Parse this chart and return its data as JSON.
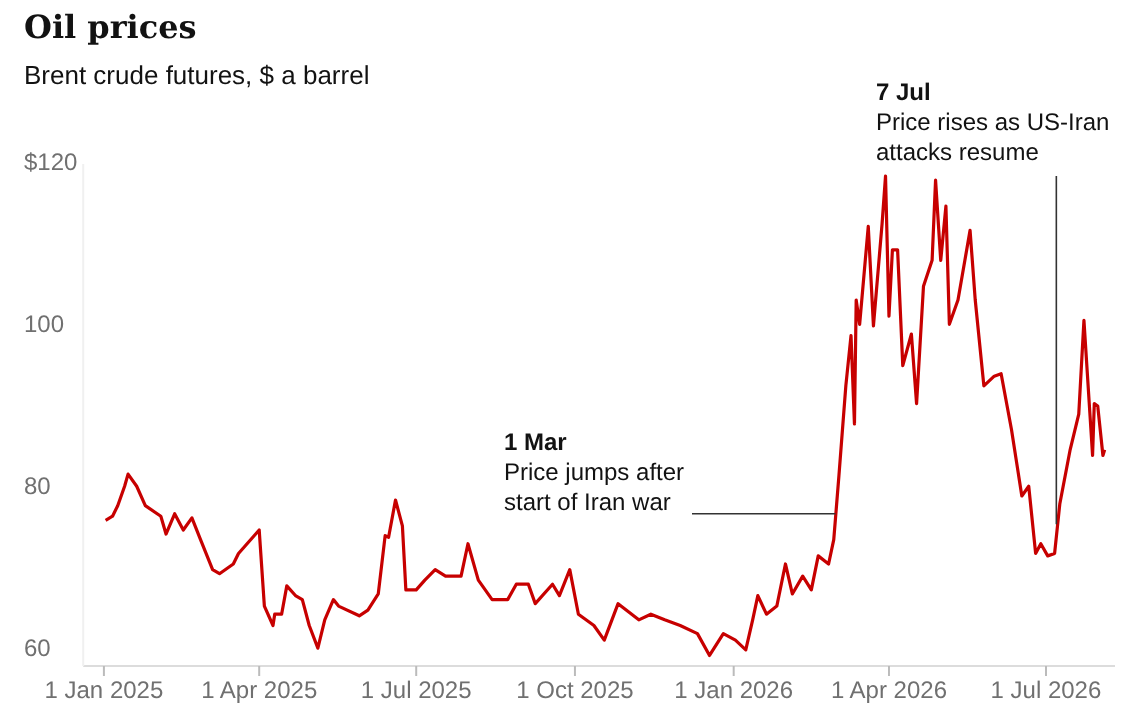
{
  "chart_data": {
    "type": "line",
    "title": "Oil prices",
    "subtitle": "Brent crude futures, $ a barrel",
    "xlim": [
      "2024-12-20",
      "2026-08-10"
    ],
    "ylim": [
      58,
      120
    ],
    "xticks": [
      {
        "value": "2025-01-01",
        "label": "1 Jan 2025"
      },
      {
        "value": "2025-04-01",
        "label": "1 Apr 2025"
      },
      {
        "value": "2025-07-01",
        "label": "1 Jul 2025"
      },
      {
        "value": "2025-10-01",
        "label": "1 Oct 2025"
      },
      {
        "value": "2026-01-01",
        "label": "1 Jan 2026"
      },
      {
        "value": "2026-04-01",
        "label": "1 Apr 2026"
      },
      {
        "value": "2026-07-01",
        "label": "1 Jul 2026"
      }
    ],
    "yticks": [
      60,
      80,
      100,
      {
        "value": 120,
        "label": "$120"
      }
    ],
    "grid": false,
    "annotations": [
      {
        "text": "1 Mar\nPrice jumps after\nstart of Iran war",
        "x": "2026-03-01",
        "y": 76.8
      },
      {
        "text": "7 Jul\nPrice rises as US-Iran\nattacks resume",
        "x": "2026-07-07",
        "y": 75.5
      }
    ],
    "series": [
      {
        "color": "#c70000",
        "x": [
          "2025-01-02",
          "2025-01-06",
          "2025-01-09",
          "2025-01-13",
          "2025-01-15",
          "2025-01-20",
          "2025-01-25",
          "2025-02-03",
          "2025-02-06",
          "2025-02-11",
          "2025-02-16",
          "2025-02-21",
          "2025-02-26",
          "2025-03-05",
          "2025-03-09",
          "2025-03-17",
          "2025-03-20",
          "2025-04-01",
          "2025-04-04",
          "2025-04-09",
          "2025-04-10",
          "2025-04-14",
          "2025-04-17",
          "2025-04-22",
          "2025-04-26",
          "2025-04-30",
          "2025-05-05",
          "2025-05-09",
          "2025-05-14",
          "2025-05-17",
          "2025-05-29",
          "2025-06-03",
          "2025-06-09",
          "2025-06-13",
          "2025-06-15",
          "2025-06-19",
          "2025-06-23",
          "2025-06-25",
          "2025-07-01",
          "2025-07-06",
          "2025-07-12",
          "2025-07-18",
          "2025-07-27",
          "2025-07-31",
          "2025-08-06",
          "2025-08-14",
          "2025-08-23",
          "2025-08-28",
          "2025-09-04",
          "2025-09-08",
          "2025-09-18",
          "2025-09-22",
          "2025-09-28",
          "2025-10-03",
          "2025-10-12",
          "2025-10-18",
          "2025-10-26",
          "2025-11-07",
          "2025-11-14",
          "2025-11-22",
          "2025-12-01",
          "2025-12-11",
          "2025-12-18",
          "2025-12-26",
          "2026-01-02",
          "2026-01-08",
          "2026-01-12",
          "2026-01-15",
          "2026-01-20",
          "2026-01-26",
          "2026-01-31",
          "2026-02-04",
          "2026-02-10",
          "2026-02-15",
          "2026-02-19",
          "2026-02-25",
          "2026-02-28",
          "2026-03-03",
          "2026-03-07",
          "2026-03-10",
          "2026-03-12",
          "2026-03-13",
          "2026-03-15",
          "2026-03-20",
          "2026-03-23",
          "2026-03-28",
          "2026-03-30",
          "2026-04-01",
          "2026-04-03",
          "2026-04-06",
          "2026-04-09",
          "2026-04-14",
          "2026-04-17",
          "2026-04-21",
          "2026-04-26",
          "2026-04-28",
          "2026-05-01",
          "2026-05-04",
          "2026-05-06",
          "2026-05-11",
          "2026-05-18",
          "2026-05-21",
          "2026-05-26",
          "2026-06-01",
          "2026-06-05",
          "2026-06-11",
          "2026-06-17",
          "2026-06-21",
          "2026-06-25",
          "2026-06-28",
          "2026-07-02",
          "2026-07-06",
          "2026-07-09",
          "2026-07-15",
          "2026-07-20",
          "2026-07-23",
          "2026-07-28",
          "2026-07-29",
          "2026-07-31",
          "2026-08-03",
          "2026-08-04"
        ],
        "values": [
          76.0,
          76.5,
          77.8,
          80.2,
          81.7,
          80.2,
          77.8,
          76.5,
          74.3,
          76.8,
          74.8,
          76.3,
          73.6,
          69.9,
          69.4,
          70.6,
          71.9,
          74.8,
          65.4,
          63.0,
          64.4,
          64.4,
          67.9,
          66.7,
          66.2,
          63.0,
          60.2,
          63.7,
          66.2,
          65.4,
          64.2,
          64.9,
          66.9,
          74.1,
          73.9,
          78.5,
          75.3,
          67.4,
          67.4,
          68.6,
          69.9,
          69.1,
          69.1,
          73.1,
          68.6,
          66.2,
          66.2,
          68.1,
          68.1,
          65.7,
          68.1,
          66.7,
          69.9,
          64.4,
          63.0,
          61.2,
          65.7,
          63.7,
          64.4,
          63.7,
          63.0,
          62.0,
          59.3,
          62.0,
          61.2,
          60.0,
          63.7,
          66.7,
          64.4,
          65.4,
          70.6,
          66.9,
          69.1,
          67.4,
          71.6,
          70.6,
          73.6,
          81.5,
          92.6,
          98.8,
          87.9,
          103.2,
          100.2,
          112.3,
          100.0,
          112.6,
          118.5,
          101.2,
          109.4,
          109.4,
          95.1,
          99.0,
          90.4,
          104.9,
          108.1,
          118.0,
          108.1,
          114.8,
          100.2,
          103.2,
          111.8,
          103.2,
          92.6,
          93.8,
          94.1,
          87.2,
          79.0,
          80.2,
          71.9,
          73.1,
          71.6,
          71.9,
          78.0,
          84.7,
          89.1,
          100.7,
          84.0,
          90.4,
          90.1,
          84.0,
          84.7
        ]
      }
    ]
  }
}
